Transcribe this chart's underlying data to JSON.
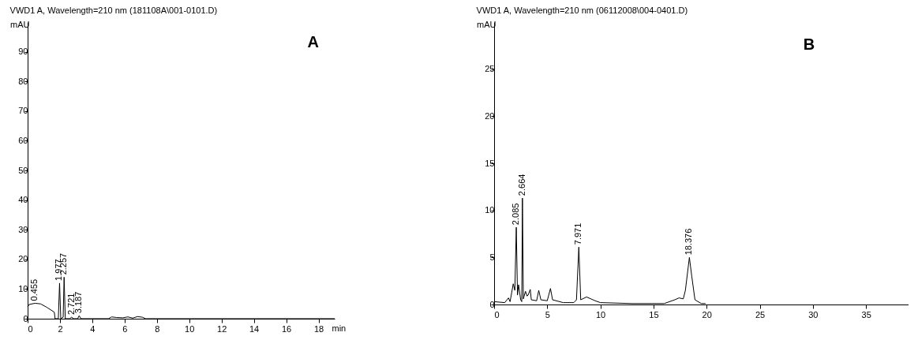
{
  "chart_data": [
    {
      "type": "line",
      "title": "VWD1 A, Wavelength=210 nm (181108A\\001-0101.D)",
      "xlabel": "min",
      "ylabel": "mAU",
      "xlim": [
        0,
        19
      ],
      "ylim": [
        0,
        100
      ],
      "xticks": [
        0,
        2,
        4,
        6,
        8,
        10,
        12,
        14,
        16,
        18
      ],
      "yticks": [
        0,
        10,
        20,
        30,
        40,
        50,
        60,
        70,
        80,
        90
      ],
      "grid": false,
      "series": [
        {
          "color": "#000000",
          "x": [
            0,
            0.1,
            0.455,
            0.8,
            1.2,
            1.65,
            1.7,
            1.9,
            1.977,
            2.05,
            2.2,
            2.257,
            2.33,
            2.6,
            2.721,
            2.85,
            3.1,
            3.187,
            3.3,
            5,
            5.2,
            5.5,
            5.9,
            6.2,
            6.5,
            6.8,
            7.1,
            7.3,
            19
          ],
          "values": [
            4,
            4.8,
            5.2,
            5,
            3.8,
            2.2,
            0,
            0,
            12,
            0,
            0.5,
            14,
            0,
            0,
            0.5,
            0,
            0,
            1,
            0,
            0,
            0.6,
            0.4,
            0.3,
            0.6,
            0.2,
            0.7,
            0.5,
            0,
            0
          ]
        }
      ],
      "annotations": [
        "A",
        {
          "text": "0.455",
          "x": 0.455,
          "y": 5.2
        },
        {
          "text": "1.977",
          "x": 1.977,
          "y": 12
        },
        {
          "text": "2.257",
          "x": 2.257,
          "y": 14
        },
        {
          "text": "2.721",
          "x": 2.721,
          "y": 0.5
        },
        {
          "text": "3.187",
          "x": 3.187,
          "y": 1
        }
      ]
    },
    {
      "type": "line",
      "title": "VWD1 A, Wavelength=210 nm (06112008\\004-0401.D)",
      "ylabel": "mAU",
      "xlim": [
        0,
        39
      ],
      "ylim": [
        0,
        30
      ],
      "xticks": [
        0,
        5,
        10,
        15,
        20,
        25,
        30,
        35
      ],
      "yticks": [
        0,
        5,
        10,
        15,
        20,
        25
      ],
      "grid": false,
      "series": [
        {
          "color": "#000000",
          "x": [
            0,
            1,
            1.35,
            1.5,
            1.8,
            1.95,
            2.085,
            2.2,
            2.3,
            2.5,
            2.6,
            2.664,
            2.75,
            2.95,
            3.1,
            3.2,
            3.4,
            3.5,
            4.0,
            4.2,
            4.4,
            5.0,
            5.3,
            5.5,
            6.5,
            7.5,
            7.75,
            7.971,
            8.15,
            8.7,
            9.5,
            10,
            13,
            16,
            17.0,
            17.4,
            17.8,
            18.0,
            18.376,
            18.6,
            18.9,
            19.5,
            19.9
          ],
          "values": [
            0.3,
            0.2,
            0.7,
            0.3,
            2.2,
            1.5,
            8.2,
            1,
            2.1,
            0.5,
            0.3,
            11.3,
            0.6,
            1.4,
            0.9,
            1,
            1.6,
            0.5,
            0.4,
            1.5,
            0.5,
            0.4,
            1.7,
            0.5,
            0.2,
            0.2,
            0.5,
            6.1,
            0.5,
            0.8,
            0.4,
            0.2,
            0.1,
            0.1,
            0.5,
            0.7,
            0.6,
            1.5,
            5.0,
            3,
            0.5,
            0.1,
            0.1
          ]
        }
      ],
      "annotations": [
        "B",
        {
          "text": "2.085",
          "x": 2.085,
          "y": 8.2
        },
        {
          "text": "2.664",
          "x": 2.664,
          "y": 11.3
        },
        {
          "text": "7.971",
          "x": 7.971,
          "y": 6.1
        },
        {
          "text": "18.376",
          "x": 18.376,
          "y": 5.0
        }
      ]
    }
  ]
}
